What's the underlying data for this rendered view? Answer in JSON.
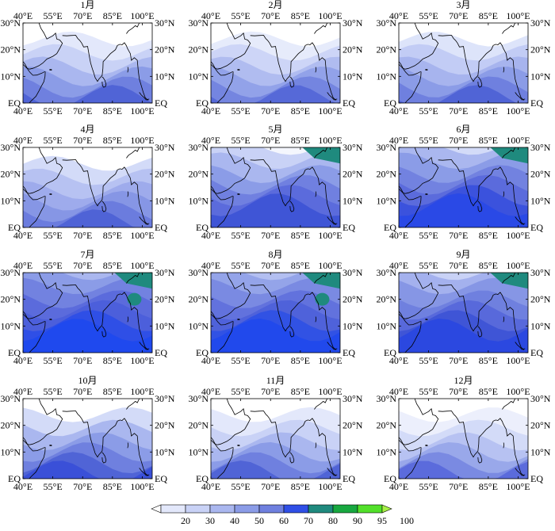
{
  "panels": [
    {
      "title": "1月",
      "palette": [
        "#ffffff",
        "#e3e8fb",
        "#c9d2f6",
        "#aab7ef",
        "#8b9ce7",
        "#6f80df",
        "#5064d6"
      ],
      "green": 0
    },
    {
      "title": "2月",
      "palette": [
        "#ffffff",
        "#e6ebfb",
        "#cdd5f7",
        "#b0bcf0",
        "#92a2e9",
        "#7485e0",
        "#5669d8"
      ],
      "green": 0
    },
    {
      "title": "3月",
      "palette": [
        "#ffffff",
        "#dde4fa",
        "#c2ccf5",
        "#a7b4ee",
        "#8b9ce7",
        "#6f80df",
        "#5064d6"
      ],
      "green": 0
    },
    {
      "title": "4月",
      "palette": [
        "#ffffff",
        "#d3dbf8",
        "#b7c2f2",
        "#9eabec",
        "#8696e5",
        "#6b7cde",
        "#4f63d6"
      ],
      "green": 0
    },
    {
      "title": "5月",
      "palette": [
        "#f4f6fd",
        "#c9d2f6",
        "#aab7ef",
        "#8b9ce7",
        "#7080e0",
        "#5b6bdc",
        "#3f55d6"
      ],
      "green": 1
    },
    {
      "title": "6月",
      "palette": [
        "#d3dbf8",
        "#aab7ef",
        "#8b9ce7",
        "#7282e0",
        "#5b6bdc",
        "#3b52dd",
        "#2a49e6"
      ],
      "green": 1
    },
    {
      "title": "7月",
      "palette": [
        "#aab7ef",
        "#8b9ce7",
        "#7282e0",
        "#5b6bdc",
        "#4c5fdb",
        "#2f4fe6",
        "#1f49ee"
      ],
      "green": 2
    },
    {
      "title": "8月",
      "palette": [
        "#b3bff1",
        "#94a4e9",
        "#7a8ae2",
        "#6272dd",
        "#4f62da",
        "#3152e4",
        "#2149ec"
      ],
      "green": 2
    },
    {
      "title": "9月",
      "palette": [
        "#c9d2f6",
        "#a4b1ee",
        "#8696e5",
        "#6f80df",
        "#5869db",
        "#3f55d6",
        "#2b48e0"
      ],
      "green": 1
    },
    {
      "title": "10月",
      "palette": [
        "#ffffff",
        "#d3dbf8",
        "#aab7ef",
        "#8b9ce7",
        "#6f80df",
        "#5064d6",
        "#3a50d8"
      ],
      "green": 0
    },
    {
      "title": "11月",
      "palette": [
        "#ffffff",
        "#e3e8fb",
        "#c9d2f6",
        "#aab7ef",
        "#8b9ce7",
        "#6f80df",
        "#5064d6"
      ],
      "green": 0
    },
    {
      "title": "12月",
      "palette": [
        "#ffffff",
        "#eceffc",
        "#d3dbf8",
        "#b7c2f2",
        "#99a8ea",
        "#7a8ae2",
        "#5b6bdc"
      ],
      "green": 0
    }
  ],
  "lon_ticks": [
    "40°E",
    "55°E",
    "70°E",
    "85°E",
    "100°E"
  ],
  "lat_ticks_left": [
    "30°N",
    "20°N",
    "10°N",
    "EQ"
  ],
  "lat_ticks_right": [
    "30°N",
    "20°N",
    "10°N",
    "EQ"
  ],
  "colorbar": {
    "labels": [
      "20",
      "30",
      "40",
      "50",
      "60",
      "70",
      "80",
      "90",
      "95",
      "100"
    ],
    "colors": [
      "#ffffff",
      "#e3e8fb",
      "#c9d2f6",
      "#aab7ef",
      "#8b9ce7",
      "#6f80df",
      "#2f4fe6",
      "#1f8a7e",
      "#18a840",
      "#52e02a",
      "#a6f046"
    ]
  }
}
